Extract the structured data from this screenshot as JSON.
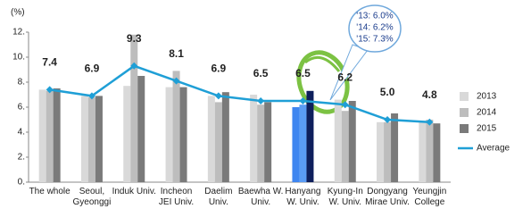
{
  "chart_data": {
    "type": "bar",
    "unit_label": "(%)",
    "categories": [
      "The whole",
      "Seoul,\nGyeonggi",
      "Induk Univ.",
      "Incheon\nJEI Univ.",
      "Daelim\nUniv.",
      "Baewha W.\nUniv.",
      "Hanyang\nW. Univ.",
      "Kyung-In\nW. Univ.",
      "Dongyang\nMirae Univ.",
      "Yeungjin\nCollege"
    ],
    "series": [
      {
        "name": "2013",
        "color": "#d9d9d9",
        "values": [
          7.4,
          6.9,
          7.7,
          7.6,
          6.9,
          7.0,
          6.0,
          6.6,
          4.8,
          4.9
        ]
      },
      {
        "name": "2014",
        "color": "#bdbdbd",
        "values": [
          7.3,
          6.8,
          11.8,
          8.9,
          6.4,
          6.2,
          6.2,
          5.7,
          4.8,
          5.0
        ]
      },
      {
        "name": "2015",
        "color": "#7a7a7a",
        "values": [
          7.5,
          6.9,
          8.5,
          7.6,
          7.2,
          6.4,
          7.3,
          6.5,
          5.5,
          4.7
        ]
      },
      {
        "name": "Average",
        "type": "line",
        "color": "#1f9fd6",
        "values": [
          7.4,
          6.9,
          9.3,
          8.1,
          6.9,
          6.5,
          6.5,
          6.2,
          5.0,
          4.8
        ],
        "value_labels": [
          "7.4",
          "6.9",
          "9.3",
          "8.1",
          "6.9",
          "6.5",
          "6.5",
          "6.2",
          "5.0",
          "4.8"
        ]
      }
    ],
    "highlight": {
      "category": 6,
      "colors": [
        "#3f86f0",
        "#5a9cf5",
        "#0e1f5c"
      ]
    },
    "annotations": [
      "'13: 6.0%",
      "'14: 6.2%",
      "'15: 7.3%"
    ],
    "ylim": [
      0,
      12
    ],
    "yticks": [
      {
        "value": 0,
        "label": "0."
      },
      {
        "value": 2,
        "label": "2."
      },
      {
        "value": 4,
        "label": "4."
      },
      {
        "value": 6,
        "label": "6."
      },
      {
        "value": 8,
        "label": "8."
      },
      {
        "value": 10,
        "label": "10."
      },
      {
        "value": 12,
        "label": "12."
      }
    ],
    "grid": false,
    "legend": "right"
  }
}
